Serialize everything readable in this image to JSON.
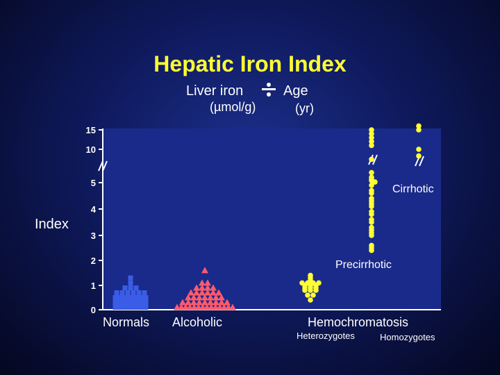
{
  "chart_data": {
    "type": "scatter",
    "title": "Hepatic Iron Index",
    "formula": {
      "numerator": "Liver iron",
      "numerator_unit": "(µmol/g)",
      "denominator": "Age",
      "denominator_unit": "(yr)"
    },
    "ylabel": "Index",
    "y_ticks": [
      "15",
      "10",
      "5",
      "4",
      "3",
      "2",
      "1",
      "0"
    ],
    "y_axis_break": true,
    "categories": [
      "Normals",
      "Alcoholic",
      "Hemochromatosis"
    ],
    "subcategories": [
      "Heterozygotes",
      "Homozygotes"
    ],
    "annotations": [
      "Cirrhotic",
      "Precirrhotic"
    ],
    "colors": {
      "normals": "#3b5ce6",
      "alcoholic": "#ff5a6a",
      "hemochromatosis": "#ffff33",
      "title": "#ffff33"
    },
    "series": [
      {
        "key": "normals",
        "marker": "square",
        "color": "#3b5ce6",
        "values": [
          0.1,
          0.1,
          0.3,
          0.1,
          0.3,
          0.5,
          0.1,
          0.3,
          0.5,
          0.7,
          0.1,
          0.3,
          0.5,
          0.7,
          0.9,
          1.1,
          1.3,
          0.1,
          0.3,
          0.5,
          0.7,
          0.9,
          0.1,
          0.3,
          0.5,
          0.7,
          0.9,
          0.1,
          0.3,
          0.5,
          0.7,
          0.1,
          0.3,
          0.5,
          0.7,
          0.1,
          0.3,
          0.5
        ]
      },
      {
        "key": "alcoholic",
        "marker": "triangle",
        "color": "#ff5a6a",
        "values": [
          0.1,
          0.1,
          0.1,
          0.3,
          0.1,
          0.3,
          0.5,
          0.1,
          0.3,
          0.5,
          0.7,
          0.1,
          0.3,
          0.5,
          0.7,
          0.9,
          0.1,
          0.3,
          0.5,
          0.7,
          0.9,
          1.1,
          1.6,
          0.1,
          0.3,
          0.5,
          0.7,
          0.9,
          1.1,
          0.1,
          0.3,
          0.5,
          0.7,
          0.9,
          0.1,
          0.3,
          0.5,
          0.7,
          0.1,
          0.3,
          0.1,
          0.1,
          0.1
        ]
      },
      {
        "key": "heterozygotes",
        "marker": "circle",
        "color": "#ffff33",
        "values": [
          0.4,
          0.6,
          0.8,
          1.0,
          1.1,
          0.6,
          0.8,
          1.0,
          1.2,
          1.4,
          0.8,
          0.9,
          1.0,
          1.1,
          0.9,
          1.1,
          1.3,
          0.9,
          1.1
        ]
      },
      {
        "key": "homozygotes",
        "marker": "circle",
        "color": "#ffff33",
        "values": [
          2.4,
          2.5,
          2.6,
          3.0,
          3.1,
          3.2,
          3.3,
          3.5,
          3.6,
          3.8,
          3.9,
          4.1,
          4.2,
          4.3,
          4.4,
          4.6,
          4.7,
          4.9,
          5.1,
          5.3,
          5.5,
          5.8,
          6.5,
          8.5,
          11.0,
          12.0,
          13.0,
          14.0,
          15.0,
          9.0,
          10.0,
          15.0,
          16.0
        ]
      }
    ]
  }
}
